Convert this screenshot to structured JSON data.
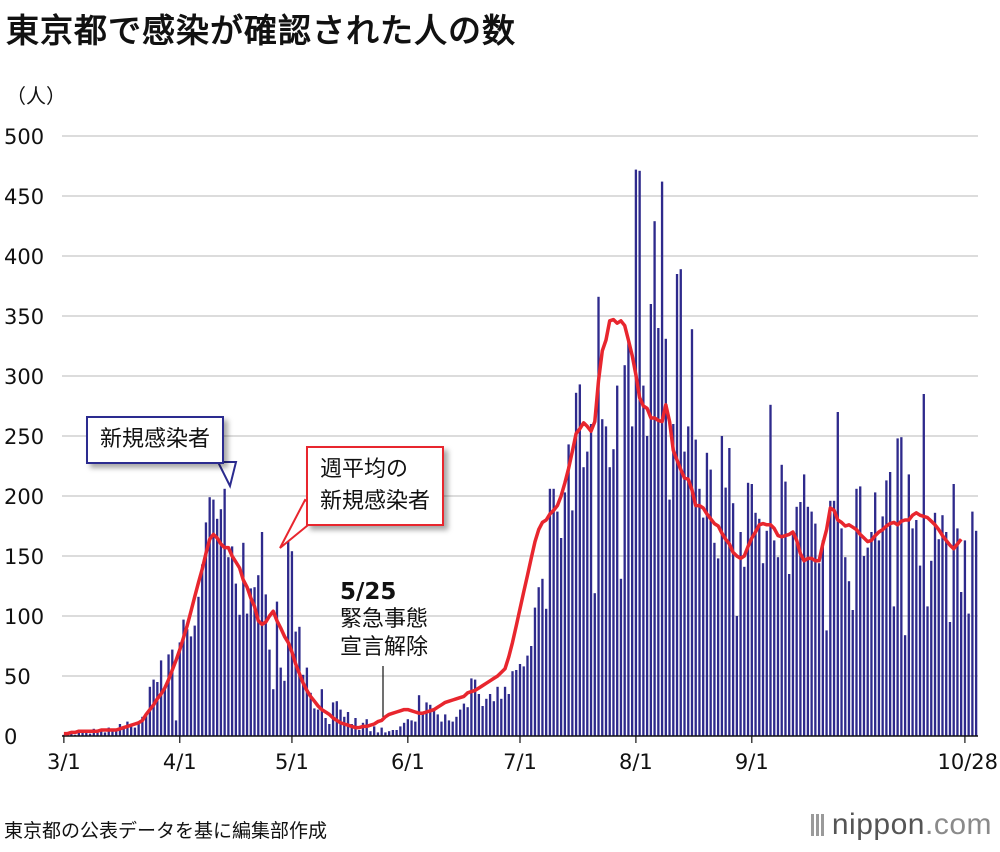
{
  "title": "東京都で感染が確認された人の数",
  "unit": "（人）",
  "source": "東京都の公表データを基に編集部作成",
  "logo": {
    "name": "nippon",
    "dot": ".",
    "tld": "com"
  },
  "callouts": {
    "daily": "新規感染者",
    "weekly_line1": "週平均の",
    "weekly_line2": "新規感染者"
  },
  "annotation": {
    "date": "5/25",
    "line1": "緊急事態",
    "line2": "宣言解除"
  },
  "colors": {
    "bar": "#2e2a8c",
    "line": "#e8262e",
    "grid": "#c8c8c8"
  },
  "chart_data": {
    "type": "bar",
    "title": "東京都で感染が確認された人の数",
    "ylabel": "（人）",
    "ylim": [
      0,
      500
    ],
    "yticks": [
      0,
      50,
      100,
      150,
      200,
      250,
      300,
      350,
      400,
      450,
      500
    ],
    "x_start": "3/1",
    "xtick_labels": [
      {
        "label": "3/1",
        "day": 0
      },
      {
        "label": "4/1",
        "day": 31
      },
      {
        "label": "5/1",
        "day": 61
      },
      {
        "label": "6/1",
        "day": 92
      },
      {
        "label": "7/1",
        "day": 122
      },
      {
        "label": "8/1",
        "day": 153
      },
      {
        "label": "9/1",
        "day": 184
      },
      {
        "label": "10/28",
        "day": 241
      }
    ],
    "series": [
      {
        "name": "新規感染者",
        "type": "bar",
        "values": [
          1,
          2,
          3,
          1,
          4,
          5,
          3,
          2,
          6,
          5,
          4,
          3,
          7,
          4,
          5,
          10,
          8,
          12,
          9,
          7,
          11,
          16,
          17,
          41,
          47,
          45,
          63,
          40,
          68,
          72,
          13,
          78,
          97,
          89,
          83,
          92,
          116,
          143,
          178,
          199,
          197,
          181,
          189,
          206,
          149,
          158,
          127,
          101,
          161,
          102,
          123,
          124,
          134,
          170,
          118,
          72,
          39,
          112,
          57,
          46,
          165,
          154,
          87,
          91,
          51,
          57,
          36,
          23,
          22,
          39,
          15,
          10,
          28,
          29,
          22,
          16,
          20,
          10,
          15,
          5,
          11,
          14,
          4,
          8,
          3,
          7,
          3,
          4,
          5,
          5,
          8,
          11,
          14,
          13,
          12,
          34,
          20,
          28,
          26,
          22,
          18,
          12,
          18,
          13,
          12,
          16,
          22,
          27,
          24,
          48,
          47,
          35,
          25,
          31,
          35,
          29,
          41,
          31,
          41,
          35,
          54,
          55,
          60,
          58,
          67,
          75,
          107,
          124,
          131,
          106,
          206,
          206,
          187,
          165,
          203,
          243,
          188,
          286,
          293,
          224,
          237,
          260,
          119,
          366,
          264,
          258,
          224,
          239,
          292,
          131,
          309,
          329,
          258,
          472,
          471,
          292,
          250,
          360,
          429,
          340,
          462,
          331,
          197,
          260,
          385,
          389,
          237,
          258,
          339,
          247,
          206,
          182,
          236,
          222,
          161,
          148,
          250,
          207,
          240,
          194,
          100,
          170,
          141,
          211,
          210,
          186,
          181,
          144,
          171,
          276,
          163,
          149,
          226,
          212,
          135,
          170,
          191,
          195,
          218,
          191,
          187,
          177,
          144,
          163,
          88,
          196,
          196,
          270,
          173,
          149,
          129,
          105,
          206,
          208,
          150,
          157,
          170,
          203,
          163,
          183,
          213,
          220,
          108,
          248,
          249,
          84,
          218,
          173,
          180,
          142,
          285,
          108,
          146,
          186,
          164,
          184,
          170,
          95,
          210,
          173,
          120,
          163,
          102,
          187,
          171
        ]
      },
      {
        "name": "週平均の新規感染者",
        "type": "line",
        "values": [
          2,
          2,
          3,
          3,
          4,
          4,
          4,
          4,
          4,
          4,
          5,
          5,
          5,
          5,
          5,
          6,
          7,
          8,
          9,
          10,
          11,
          13,
          18,
          22,
          26,
          31,
          35,
          40,
          47,
          55,
          63,
          72,
          82,
          92,
          104,
          116,
          128,
          139,
          152,
          164,
          168,
          165,
          160,
          157,
          157,
          150,
          145,
          140,
          130,
          124,
          115,
          108,
          96,
          93,
          95,
          100,
          104,
          96,
          90,
          83,
          78,
          70,
          60,
          52,
          44,
          38,
          33,
          29,
          25,
          22,
          20,
          18,
          15,
          13,
          11,
          10,
          9,
          8,
          7,
          7,
          8,
          8,
          9,
          10,
          12,
          13,
          16,
          18,
          19,
          20,
          21,
          22,
          22,
          21,
          20,
          19,
          19,
          20,
          21,
          22,
          24,
          26,
          28,
          29,
          30,
          31,
          32,
          33,
          36,
          37,
          38,
          40,
          42,
          44,
          46,
          48,
          50,
          53,
          56,
          66,
          78,
          92,
          106,
          120,
          134,
          148,
          162,
          172,
          178,
          180,
          185,
          188,
          192,
          200,
          211,
          223,
          237,
          252,
          256,
          261,
          258,
          254,
          262,
          296,
          321,
          330,
          346,
          347,
          344,
          346,
          342,
          330,
          317,
          301,
          282,
          275,
          273,
          265,
          265,
          263,
          262,
          276,
          262,
          238,
          230,
          222,
          215,
          214,
          205,
          192,
          192,
          190,
          185,
          181,
          177,
          175,
          169,
          164,
          160,
          153,
          150,
          148,
          150,
          158,
          165,
          170,
          176,
          177,
          176,
          176,
          173,
          167,
          166,
          167,
          168,
          170,
          163,
          152,
          146,
          148,
          148,
          146,
          146,
          160,
          172,
          190,
          188,
          180,
          178,
          175,
          176,
          174,
          172,
          168,
          165,
          162,
          163,
          167,
          170,
          172,
          175,
          177,
          178,
          176,
          179,
          180,
          180,
          184,
          186,
          184,
          183,
          182,
          179,
          176,
          172,
          167,
          163,
          159,
          156,
          160,
          164
        ]
      }
    ]
  }
}
